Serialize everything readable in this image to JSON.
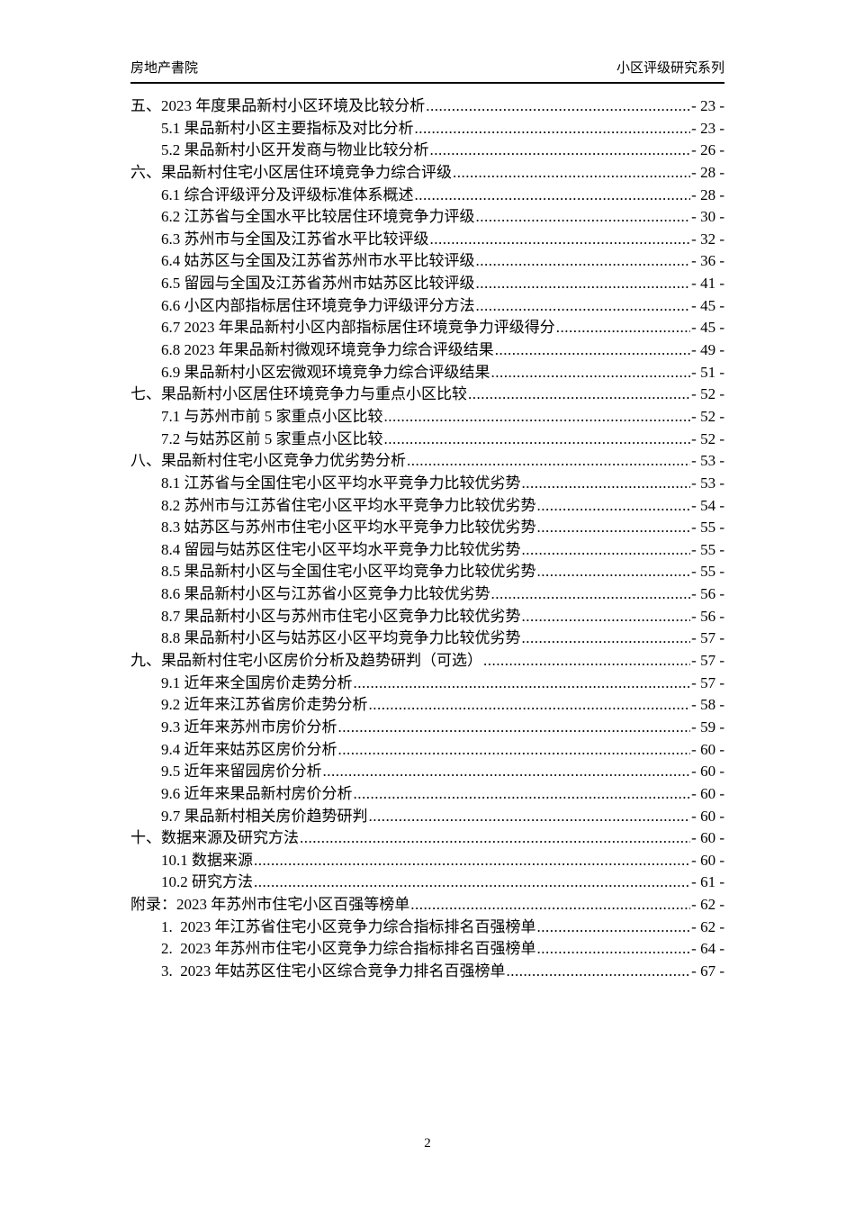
{
  "header": {
    "left": "房地产書院",
    "right": "小区评级研究系列"
  },
  "toc": {
    "entries": [
      {
        "level": 1,
        "label": "五、2023 年度果品新村小区环境及比较分析",
        "page": 23
      },
      {
        "level": 2,
        "label": "5.1 果品新村小区主要指标及对比分析",
        "page": 23
      },
      {
        "level": 2,
        "label": "5.2 果品新村小区开发商与物业比较分析",
        "page": 26
      },
      {
        "level": 1,
        "label": "六、果品新村住宅小区居住环境竞争力综合评级",
        "page": 28
      },
      {
        "level": 2,
        "label": "6.1 综合评级评分及评级标准体系概述",
        "page": 28
      },
      {
        "level": 2,
        "label": "6.2 江苏省与全国水平比较居住环境竞争力评级",
        "page": 30
      },
      {
        "level": 2,
        "label": "6.3 苏州市与全国及江苏省水平比较评级",
        "page": 32
      },
      {
        "level": 2,
        "label": "6.4 姑苏区与全国及江苏省苏州市水平比较评级",
        "page": 36
      },
      {
        "level": 2,
        "label": "6.5 留园与全国及江苏省苏州市姑苏区比较评级",
        "page": 41
      },
      {
        "level": 2,
        "label": "6.6 小区内部指标居住环境竞争力评级评分方法",
        "page": 45
      },
      {
        "level": 2,
        "label": "6.7 2023 年果品新村小区内部指标居住环境竞争力评级得分",
        "page": 45
      },
      {
        "level": 2,
        "label": "6.8 2023 年果品新村微观环境竞争力综合评级结果",
        "page": 49
      },
      {
        "level": 2,
        "label": "6.9 果品新村小区宏微观环境竞争力综合评级结果",
        "page": 51
      },
      {
        "level": 1,
        "label": "七、果品新村小区居住环境竞争力与重点小区比较",
        "page": 52
      },
      {
        "level": 2,
        "label": "7.1 与苏州市前 5 家重点小区比较",
        "page": 52
      },
      {
        "level": 2,
        "label": "7.2 与姑苏区前 5 家重点小区比较",
        "page": 52
      },
      {
        "level": 1,
        "label": "八、果品新村住宅小区竞争力优劣势分析",
        "page": 53
      },
      {
        "level": 2,
        "label": "8.1 江苏省与全国住宅小区平均水平竞争力比较优劣势",
        "page": 53
      },
      {
        "level": 2,
        "label": "8.2 苏州市与江苏省住宅小区平均水平竞争力比较优劣势",
        "page": 54
      },
      {
        "level": 2,
        "label": "8.3 姑苏区与苏州市住宅小区平均水平竞争力比较优劣势",
        "page": 55
      },
      {
        "level": 2,
        "label": "8.4 留园与姑苏区住宅小区平均水平竞争力比较优劣势",
        "page": 55
      },
      {
        "level": 2,
        "label": "8.5 果品新村小区与全国住宅小区平均竞争力比较优劣势",
        "page": 55
      },
      {
        "level": 2,
        "label": "8.6 果品新村小区与江苏省小区竞争力比较优劣势",
        "page": 56
      },
      {
        "level": 2,
        "label": "8.7 果品新村小区与苏州市住宅小区竞争力比较优劣势",
        "page": 56
      },
      {
        "level": 2,
        "label": "8.8 果品新村小区与姑苏区小区平均竞争力比较优劣势",
        "page": 57
      },
      {
        "level": 1,
        "label": "九、果品新村住宅小区房价分析及趋势研判（可选）",
        "page": 57
      },
      {
        "level": 2,
        "label": "9.1 近年来全国房价走势分析",
        "page": 57
      },
      {
        "level": 2,
        "label": "9.2 近年来江苏省房价走势分析",
        "page": 58
      },
      {
        "level": 2,
        "label": "9.3 近年来苏州市房价分析",
        "page": 59
      },
      {
        "level": 2,
        "label": "9.4 近年来姑苏区房价分析",
        "page": 60
      },
      {
        "level": 2,
        "label": "9.5 近年来留园房价分析",
        "page": 60
      },
      {
        "level": 2,
        "label": "9.6 近年来果品新村房价分析",
        "page": 60
      },
      {
        "level": 2,
        "label": "9.7 果品新村相关房价趋势研判",
        "page": 60
      },
      {
        "level": 1,
        "label": "十、数据来源及研究方法",
        "page": 60
      },
      {
        "level": 2,
        "label": "10.1 数据来源",
        "page": 60
      },
      {
        "level": 2,
        "label": "10.2 研究方法",
        "page": 61
      },
      {
        "level": 1,
        "label": "附录：2023 年苏州市住宅小区百强等榜单",
        "page": 62
      },
      {
        "level": 2,
        "label": "1.  2023 年江苏省住宅小区竞争力综合指标排名百强榜单",
        "page": 62
      },
      {
        "level": 2,
        "label": "2.  2023 年苏州市住宅小区竞争力综合指标排名百强榜单",
        "page": 64
      },
      {
        "level": 2,
        "label": "3.  2023 年姑苏区住宅小区综合竞争力排名百强榜单",
        "page": 67
      }
    ],
    "page_number_prefix": "- ",
    "page_number_suffix": " -"
  },
  "footer": {
    "page_number": "2"
  }
}
